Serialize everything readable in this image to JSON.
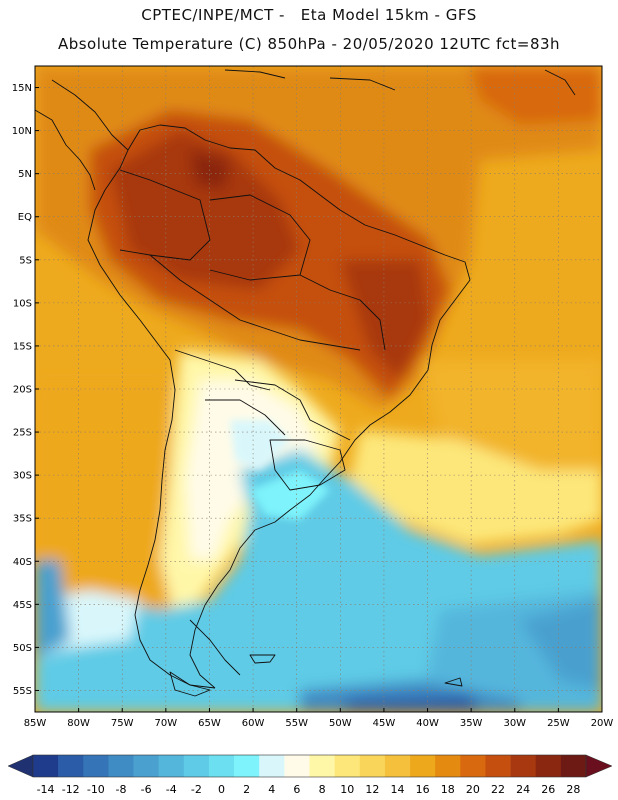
{
  "header": {
    "line1": "CPTEC/INPE/MCT -   Eta Model 15km - GFS",
    "line2": "Absolute Temperature (C) 850hPa - 20/05/2020 12UTC fct=83h"
  },
  "map": {
    "lat_labels": [
      "15N",
      "10N",
      "5N",
      "EQ",
      "5S",
      "10S",
      "15S",
      "20S",
      "25S",
      "30S",
      "35S",
      "40S",
      "45S",
      "50S",
      "55S"
    ],
    "lon_labels": [
      "85W",
      "80W",
      "75W",
      "70W",
      "65W",
      "60W",
      "55W",
      "50W",
      "45W",
      "40W",
      "35W",
      "30W",
      "25W",
      "20W"
    ],
    "lat_range": [
      17.5,
      -57.5
    ],
    "lon_range": [
      -85,
      -20
    ]
  },
  "colorbar": {
    "labels": [
      "-14",
      "-12",
      "-10",
      "-8",
      "-6",
      "-4",
      "-2",
      "0",
      "2",
      "4",
      "6",
      "8",
      "10",
      "12",
      "14",
      "16",
      "18",
      "20",
      "22",
      "24",
      "26",
      "28"
    ],
    "colors": [
      "#1f3c8c",
      "#2a5ca8",
      "#3575b7",
      "#3f8bc4",
      "#4aa0cf",
      "#55b6dc",
      "#5fcbe6",
      "#6ce0f0",
      "#7ef3fb",
      "#d9f7fb",
      "#fffbe8",
      "#fff7a8",
      "#fde77a",
      "#f9d55a",
      "#f5c13c",
      "#eea81c",
      "#e48a10",
      "#d8690e",
      "#c54f0f",
      "#a8380f",
      "#8a2711",
      "#6d1a14"
    ],
    "under_color": "#1f3170",
    "over_color": "#6a0f1d"
  }
}
